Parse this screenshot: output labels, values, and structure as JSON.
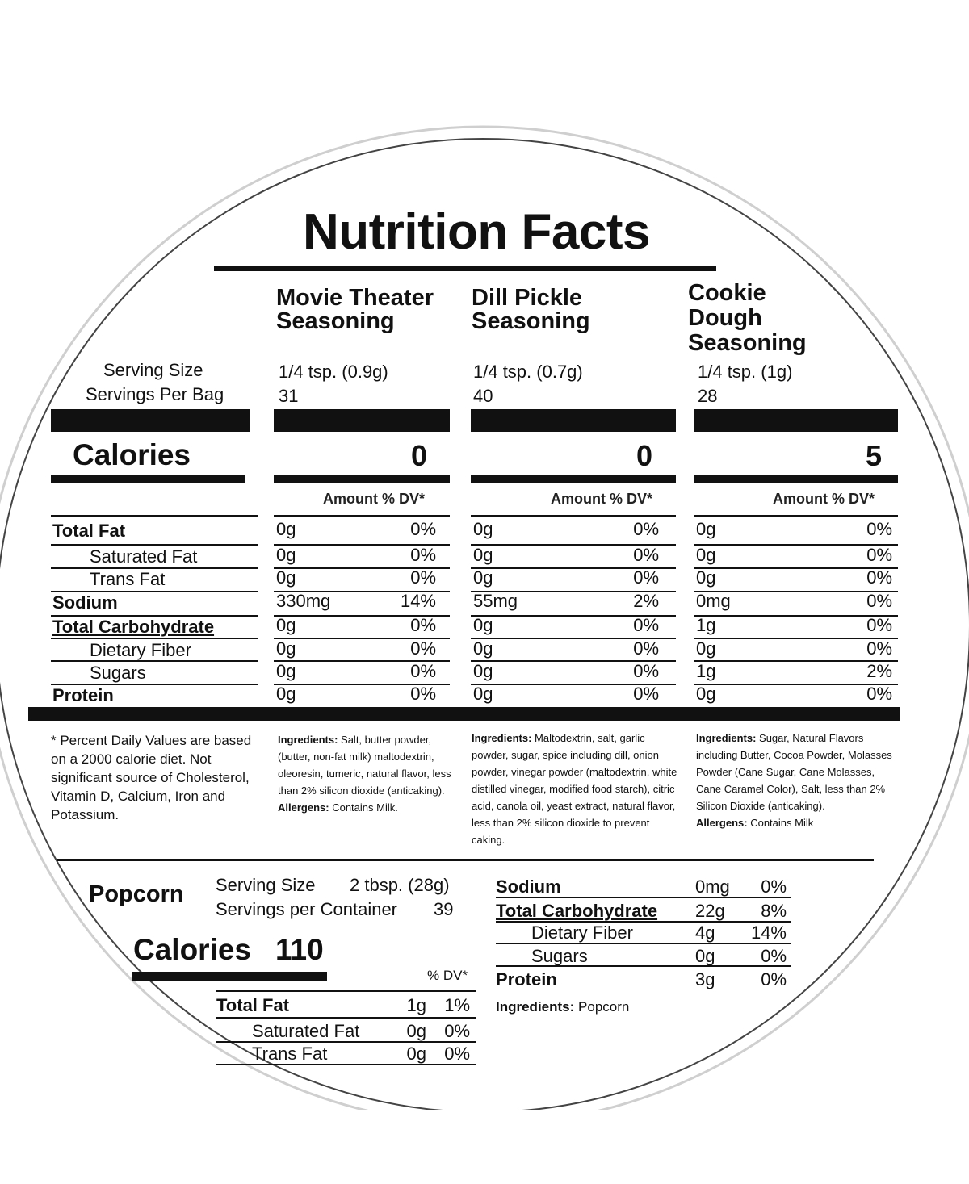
{
  "title": "Nutrition Facts",
  "serving_labels": {
    "serving_size": "Serving Size",
    "servings_per_bag": "Servings Per Bag"
  },
  "calories_label": "Calories",
  "amount_dv_header": "Amount % DV*",
  "nutrient_labels": [
    "Total Fat",
    "Saturated Fat",
    "Trans Fat",
    "Sodium",
    "Total Carbohydrate",
    "Dietary Fiber",
    "Sugars",
    "Protein"
  ],
  "products": [
    {
      "name_lines": [
        "Movie Theater",
        "Seasoning"
      ],
      "serving_size": "1/4 tsp. (0.9g)",
      "servings": "31",
      "calories": "0",
      "values": [
        "0g",
        "0g",
        "0g",
        "330mg",
        "0g",
        "0g",
        "0g",
        "0g"
      ],
      "dv": [
        "0%",
        "0%",
        "0%",
        "14%",
        "0%",
        "0%",
        "0%",
        "0%"
      ],
      "ingredients_label": "Ingredients:",
      "ingredients": "Salt, butter powder, (butter, non-fat milk) maltodextrin, oleoresin, tumeric, natural flavor, less than 2% silicon dioxide (anticaking).",
      "allergens_label": "Allergens:",
      "allergens": "Contains Milk."
    },
    {
      "name_lines": [
        "Dill Pickle",
        "Seasoning"
      ],
      "serving_size": "1/4 tsp. (0.7g)",
      "servings": "40",
      "calories": "0",
      "values": [
        "0g",
        "0g",
        "0g",
        "55mg",
        "0g",
        "0g",
        "0g",
        "0g"
      ],
      "dv": [
        "0%",
        "0%",
        "0%",
        "2%",
        "0%",
        "0%",
        "0%",
        "0%"
      ],
      "ingredients_label": "Ingredients:",
      "ingredients": "Maltodextrin, salt, garlic powder, sugar, spice including dill, onion powder, vinegar powder (maltodextrin, white distilled vinegar, modified food starch), citric acid, canola oil, yeast extract, natural flavor, less than 2% silicon dioxide to prevent caking."
    },
    {
      "name_lines": [
        "Cookie",
        "Dough",
        "Seasoning"
      ],
      "serving_size": "1/4 tsp. (1g)",
      "servings": "28",
      "calories": "5",
      "values": [
        "0g",
        "0g",
        "0g",
        "0mg",
        "1g",
        "0g",
        "1g",
        "0g"
      ],
      "dv": [
        "0%",
        "0%",
        "0%",
        "0%",
        "0%",
        "0%",
        "2%",
        "0%"
      ],
      "ingredients_label": "Ingredients:",
      "ingredients": "Sugar, Natural Flavors including Butter, Cocoa Powder, Molasses Powder (Cane Sugar, Cane Molasses, Cane Caramel Color), Salt, less than 2% Silicon Dioxide (anticaking).",
      "allergens_label": "Allergens:",
      "allergens": "Contains Milk"
    }
  ],
  "footnote": "* Percent Daily Values are based on a 2000 calorie diet. Not significant source of Cholesterol, Vitamin D, Calcium, Iron and Potassium.",
  "popcorn": {
    "name": "Popcorn",
    "serving_size_label": "Serving Size",
    "serving_size": "2 tbsp. (28g)",
    "servings_label": "Servings per Container",
    "servings": "39",
    "calories_label": "Calories",
    "calories": "110",
    "dv_header": "% DV*",
    "left_rows": [
      {
        "label": "Total Fat",
        "value": "1g",
        "dv": "1%"
      },
      {
        "label": "Saturated Fat",
        "value": "0g",
        "dv": "0%"
      },
      {
        "label": "Trans Fat",
        "value": "0g",
        "dv": "0%"
      }
    ],
    "right_rows": [
      {
        "label": "Sodium",
        "value": "0mg",
        "dv": "0%"
      },
      {
        "label": "Total Carbohydrate",
        "value": "22g",
        "dv": "8%"
      },
      {
        "label": "Dietary Fiber",
        "value": "4g",
        "dv": "14%"
      },
      {
        "label": "Sugars",
        "value": "0g",
        "dv": "0%"
      },
      {
        "label": "Protein",
        "value": "3g",
        "dv": "0%"
      }
    ],
    "ingredients_label": "Ingredients:",
    "ingredients": "Popcorn"
  }
}
